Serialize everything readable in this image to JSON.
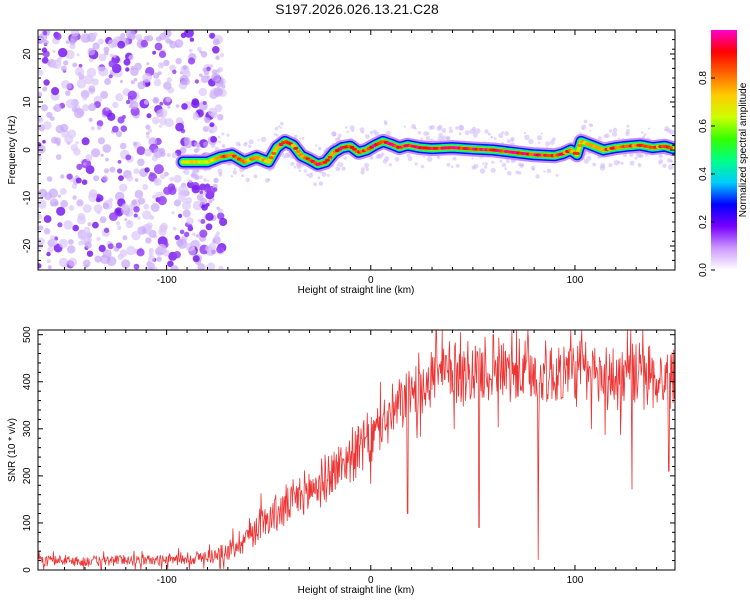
{
  "title": "S197.2026.026.13.21.C28",
  "colors": {
    "snr_line": "#ee3333",
    "noise_dots": "#8a2be2",
    "frame": "#000000"
  },
  "chart_data": [
    {
      "type": "heatmap",
      "xlabel": "Height of straight line (km)",
      "ylabel": "Frequency (Hz)",
      "xlim": [
        -163,
        149
      ],
      "ylim": [
        -25,
        25
      ],
      "x_ticks": [
        -100,
        0,
        100
      ],
      "x_tick_labels": [
        "-100",
        "0",
        "100"
      ],
      "y_ticks": [
        -20,
        -10,
        0,
        10,
        20
      ],
      "y_tick_labels": [
        "-20",
        "-10",
        "0",
        "10",
        "20"
      ],
      "noise_region_x": [
        -163,
        -78
      ],
      "ridge": {
        "x": [
          -92,
          -80,
          -74,
          -68,
          -62,
          -56,
          -50,
          -46,
          -42,
          -38,
          -34,
          -30,
          -26,
          -22,
          -18,
          -14,
          -10,
          -6,
          -2,
          2,
          6,
          10,
          14,
          18,
          24,
          30,
          40,
          50,
          60,
          70,
          80,
          90,
          94,
          98,
          101,
          103,
          108,
          114,
          120,
          126,
          132,
          138,
          144,
          148
        ],
        "y": [
          -2.5,
          -2.5,
          -1.5,
          -1.0,
          -2.5,
          -1.5,
          -2.5,
          0.5,
          1.8,
          1.0,
          -1.2,
          -2.0,
          -3.0,
          -2.5,
          -0.5,
          0.5,
          0.8,
          -0.5,
          0.0,
          1.0,
          1.8,
          1.2,
          0.5,
          1.0,
          0.5,
          0.3,
          0.5,
          0.2,
          0.0,
          -0.5,
          -1.0,
          -1.2,
          -0.8,
          0.0,
          -1.0,
          1.8,
          1.0,
          0.0,
          0.5,
          0.8,
          1.0,
          0.5,
          0.8,
          0.3
        ],
        "amplitude": [
          0.7,
          0.75,
          0.85,
          0.9,
          0.85,
          0.8,
          0.85,
          0.9,
          0.95,
          0.9,
          0.85,
          0.9,
          0.95,
          0.9,
          0.92,
          0.95,
          0.98,
          0.95,
          0.95,
          0.98,
          1.0,
          0.98,
          0.95,
          0.98,
          1.0,
          0.98,
          1.0,
          1.0,
          1.0,
          1.0,
          0.98,
          0.95,
          0.92,
          0.9,
          0.85,
          0.8,
          0.85,
          0.9,
          0.88,
          0.9,
          0.92,
          0.88,
          0.9,
          0.85
        ]
      },
      "colorbar": {
        "label": "Normalized spectral amplitude",
        "range": [
          0.0,
          1.0
        ],
        "ticks": [
          0.0,
          0.2,
          0.4,
          0.6,
          0.8
        ],
        "tick_labels": [
          "0.0",
          "0.2",
          "0.4",
          "0.6",
          "0.8"
        ],
        "colors": [
          "#ffffff",
          "#cc99ff",
          "#7700ff",
          "#0000ff",
          "#00ccff",
          "#00ff88",
          "#33ff00",
          "#ccff00",
          "#ffcc00",
          "#ff6600",
          "#ff0000",
          "#ff00cc"
        ]
      }
    },
    {
      "type": "line",
      "xlabel": "Height of straight line (km)",
      "ylabel": "SNR (10 * v/v)",
      "xlim": [
        -163,
        149
      ],
      "ylim": [
        0,
        510
      ],
      "x_ticks": [
        -100,
        0,
        100
      ],
      "x_tick_labels": [
        "-100",
        "0",
        "100"
      ],
      "y_ticks": [
        0,
        100,
        200,
        300,
        400,
        500
      ],
      "y_tick_labels": [
        "0",
        "100",
        "200",
        "300",
        "400",
        "500"
      ],
      "series": [
        {
          "name": "SNR",
          "x": [
            -163,
            -150,
            -140,
            -130,
            -120,
            -110,
            -100,
            -90,
            -80,
            -72,
            -68,
            -64,
            -60,
            -56,
            -52,
            -48,
            -44,
            -40,
            -36,
            -32,
            -28,
            -24,
            -20,
            -16,
            -12,
            -8,
            -4,
            0,
            4,
            8,
            12,
            16,
            20,
            24,
            28,
            32,
            36,
            40,
            50,
            60,
            70,
            80,
            90,
            100,
            110,
            120,
            130,
            140,
            149
          ],
          "values": [
            20,
            20,
            18,
            20,
            22,
            20,
            22,
            25,
            28,
            35,
            45,
            60,
            75,
            90,
            105,
            115,
            125,
            140,
            150,
            160,
            175,
            185,
            200,
            215,
            235,
            250,
            265,
            280,
            300,
            320,
            340,
            360,
            380,
            395,
            405,
            410,
            415,
            420,
            420,
            425,
            420,
            415,
            415,
            420,
            410,
            405,
            415,
            405,
            410
          ],
          "spread": [
            12,
            12,
            12,
            12,
            12,
            12,
            12,
            15,
            15,
            20,
            25,
            30,
            35,
            40,
            40,
            45,
            50,
            50,
            50,
            55,
            55,
            55,
            55,
            55,
            55,
            60,
            60,
            60,
            60,
            60,
            65,
            65,
            65,
            70,
            70,
            70,
            75,
            75,
            75,
            75,
            75,
            75,
            75,
            75,
            75,
            75,
            75,
            75,
            75
          ],
          "dips": [
            [
              18,
              120
            ],
            [
              82,
              22
            ],
            [
              53,
              90
            ],
            [
              108,
              300
            ],
            [
              128,
              172
            ],
            [
              146,
              210
            ]
          ],
          "peaks": [
            [
              32,
              508
            ],
            [
              44,
              505
            ],
            [
              60,
              500
            ],
            [
              98,
              510
            ]
          ]
        }
      ]
    }
  ]
}
